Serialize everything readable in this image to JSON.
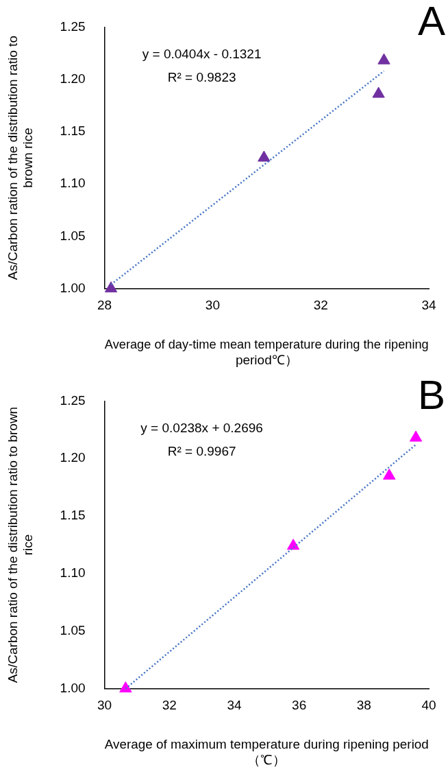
{
  "chart_data": [
    {
      "type": "scatter",
      "xlabel": "Average of day-time mean temperature during the ripening period℃）",
      "ylabel": "As/Carbon ration of the distribution ratio to brown rice",
      "xlim": [
        28,
        34
      ],
      "xticks": [
        28,
        30,
        32,
        34
      ],
      "ylim": [
        1,
        1.25
      ],
      "yticks": [
        {
          "value": 1,
          "label": "1.00"
        },
        {
          "value": 1.05,
          "label": "1.05"
        },
        {
          "value": 1.1,
          "label": "1.10"
        },
        {
          "value": 1.15,
          "label": "1.15"
        },
        {
          "value": 1.2,
          "label": "1.20"
        },
        {
          "value": 1.25,
          "label": "1.25"
        }
      ],
      "grid": false,
      "legend": false,
      "marker": "triangle",
      "series": [
        {
          "type": "line",
          "color": "#4472c4",
          "line_style": "dotted",
          "marker": "none",
          "x": [
            28.12,
            33.17
          ],
          "values": [
            1.0039,
            1.208
          ]
        },
        {
          "color": "#7030a0",
          "x": [
            28.12,
            30.95,
            33.07,
            33.17
          ],
          "values": [
            1.0,
            1.125,
            1.186,
            1.218
          ]
        }
      ],
      "annotations": [
        "y = 0.0404x - 0.1321",
        "R² = 0.9823",
        "A"
      ]
    },
    {
      "type": "scatter",
      "xlabel": "Average of maximum temperature during ripening period （℃）",
      "ylabel": "As/Carbon ratio of the distribution ratio to brown rice",
      "xlim": [
        30,
        40
      ],
      "xticks": [
        30,
        32,
        34,
        36,
        38,
        40
      ],
      "ylim": [
        1,
        1.25
      ],
      "yticks": [
        {
          "value": 1,
          "label": "1.00"
        },
        {
          "value": 1.05,
          "label": "1.05"
        },
        {
          "value": 1.1,
          "label": "1.10"
        },
        {
          "value": 1.15,
          "label": "1.15"
        },
        {
          "value": 1.2,
          "label": "1.20"
        },
        {
          "value": 1.25,
          "label": "1.25"
        }
      ],
      "grid": false,
      "legend": false,
      "marker": "triangle",
      "series": [
        {
          "type": "line",
          "color": "#4472c4",
          "line_style": "dotted",
          "marker": "none",
          "x": [
            30.65,
            39.6
          ],
          "values": [
            1.0,
            1.2121
          ]
        },
        {
          "color": "#ff00ff",
          "x": [
            30.65,
            35.82,
            38.78,
            39.6
          ],
          "values": [
            1.0,
            1.124,
            1.185,
            1.218
          ]
        }
      ],
      "annotations": [
        "y = 0.0238x + 0.2696",
        "R² = 0.9967",
        "B"
      ]
    }
  ]
}
